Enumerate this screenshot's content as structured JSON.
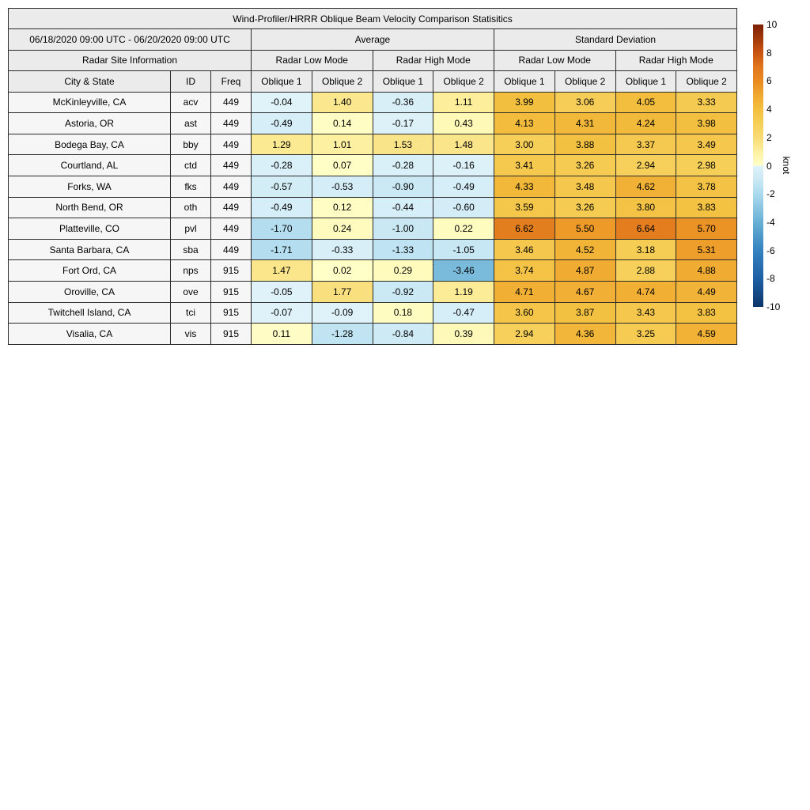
{
  "chart_data": {
    "type": "heatmap",
    "title": "Wind-Profiler/HRRR Oblique Beam Velocity Comparison Statisitics",
    "date_range": "06/18/2020 09:00 UTC - 06/20/2020 09:00 UTC",
    "groups": {
      "average": "Average",
      "std": "Standard Deviation"
    },
    "modes": {
      "low": "Radar Low Mode",
      "high": "Radar High Mode"
    },
    "site_info_label": "Radar Site Information",
    "columns": {
      "city": "City & State",
      "id": "ID",
      "freq": "Freq",
      "o1": "Oblique 1",
      "o2": "Oblique 2"
    },
    "value_columns": [
      "Average Radar Low Mode Oblique 1",
      "Average Radar Low Mode Oblique 2",
      "Average Radar High Mode Oblique 1",
      "Average Radar High Mode Oblique 2",
      "Standard Deviation Radar Low Mode Oblique 1",
      "Standard Deviation Radar Low Mode Oblique 2",
      "Standard Deviation Radar High Mode Oblique 1",
      "Standard Deviation Radar High Mode Oblique 2"
    ],
    "rows": [
      {
        "city": "McKinleyville, CA",
        "id": "acv",
        "freq": "449",
        "values": [
          -0.04,
          1.4,
          -0.36,
          1.11,
          3.99,
          3.06,
          4.05,
          3.33
        ]
      },
      {
        "city": "Astoria, OR",
        "id": "ast",
        "freq": "449",
        "values": [
          -0.49,
          0.14,
          -0.17,
          0.43,
          4.13,
          4.31,
          4.24,
          3.98
        ]
      },
      {
        "city": "Bodega Bay, CA",
        "id": "bby",
        "freq": "449",
        "values": [
          1.29,
          1.01,
          1.53,
          1.48,
          3.0,
          3.88,
          3.37,
          3.49
        ]
      },
      {
        "city": "Courtland, AL",
        "id": "ctd",
        "freq": "449",
        "values": [
          -0.28,
          0.07,
          -0.28,
          -0.16,
          3.41,
          3.26,
          2.94,
          2.98
        ]
      },
      {
        "city": "Forks, WA",
        "id": "fks",
        "freq": "449",
        "values": [
          -0.57,
          -0.53,
          -0.9,
          -0.49,
          4.33,
          3.48,
          4.62,
          3.78
        ]
      },
      {
        "city": "North Bend, OR",
        "id": "oth",
        "freq": "449",
        "values": [
          -0.49,
          0.12,
          -0.44,
          -0.6,
          3.59,
          3.26,
          3.8,
          3.83
        ]
      },
      {
        "city": "Platteville, CO",
        "id": "pvl",
        "freq": "449",
        "values": [
          -1.7,
          0.24,
          -1.0,
          0.22,
          6.62,
          5.5,
          6.64,
          5.7
        ]
      },
      {
        "city": "Santa Barbara, CA",
        "id": "sba",
        "freq": "449",
        "values": [
          -1.71,
          -0.33,
          -1.33,
          -1.05,
          3.46,
          4.52,
          3.18,
          5.31
        ]
      },
      {
        "city": "Fort Ord, CA",
        "id": "nps",
        "freq": "915",
        "values": [
          1.47,
          0.02,
          0.29,
          -3.46,
          3.74,
          4.87,
          2.88,
          4.88
        ]
      },
      {
        "city": "Oroville, CA",
        "id": "ove",
        "freq": "915",
        "values": [
          -0.05,
          1.77,
          -0.92,
          1.19,
          4.71,
          4.67,
          4.74,
          4.49
        ]
      },
      {
        "city": "Twitchell Island, CA",
        "id": "tci",
        "freq": "915",
        "values": [
          -0.07,
          -0.09,
          0.18,
          -0.47,
          3.6,
          3.87,
          3.43,
          3.83
        ]
      },
      {
        "city": "Visalia, CA",
        "id": "vis",
        "freq": "915",
        "values": [
          0.11,
          -1.28,
          -0.84,
          0.39,
          2.94,
          4.36,
          3.25,
          4.59
        ]
      }
    ],
    "colorbar": {
      "label": "knot",
      "min": -10,
      "max": 10,
      "ticks": [
        10,
        8,
        6,
        4,
        2,
        0,
        -2,
        -4,
        -6,
        -8,
        -10
      ]
    },
    "colormap_anchors": [
      [
        -10,
        "#0d3569"
      ],
      [
        -8,
        "#1e5fa5"
      ],
      [
        -6,
        "#3482bf"
      ],
      [
        -4,
        "#68b0d5"
      ],
      [
        -2,
        "#abdaee"
      ],
      [
        -1,
        "#c9e8f4"
      ],
      [
        -0.001,
        "#e1f3f9"
      ],
      [
        0.001,
        "#ffffc9"
      ],
      [
        1,
        "#fdf0a0"
      ],
      [
        2,
        "#f8da74"
      ],
      [
        3,
        "#f6cf58"
      ],
      [
        4,
        "#f3bf3f"
      ],
      [
        5,
        "#f0a930"
      ],
      [
        6,
        "#e98a20"
      ],
      [
        7,
        "#e0761d"
      ],
      [
        8,
        "#c95511"
      ],
      [
        10,
        "#7c1d04"
      ]
    ],
    "colors": {
      "header_bg": "#ebebeb",
      "row_label_bg": "#f6f6f6",
      "border": "#2b2b2b"
    }
  }
}
